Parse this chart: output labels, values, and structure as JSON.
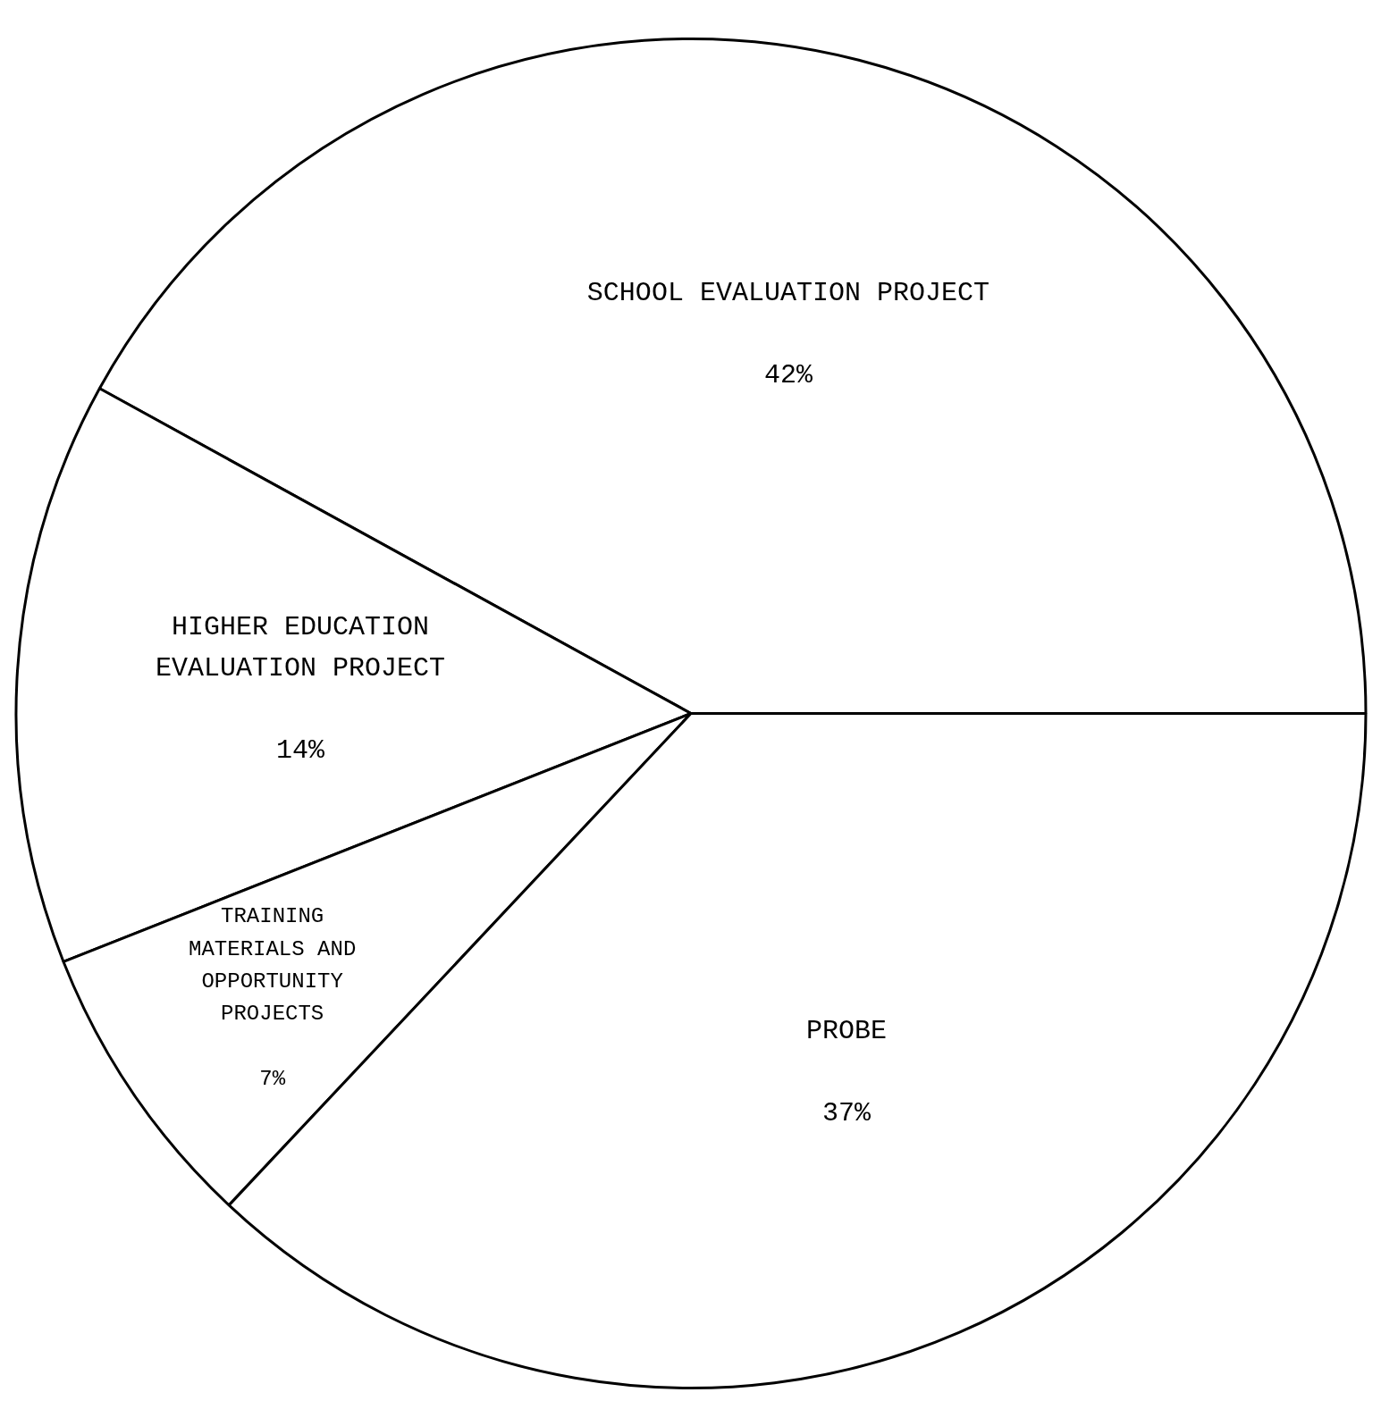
{
  "chart_data": {
    "type": "pie",
    "categories": [
      "SCHOOL EVALUATION PROJECT",
      "HIGHER EDUCATION EVALUATION PROJECT",
      "TRAINING MATERIALS AND OPPORTUNITY PROJECTS",
      "PROBE"
    ],
    "values": [
      42,
      14,
      7,
      37
    ],
    "colors": [
      "#ffffff",
      "#ffffff",
      "#ffffff",
      "#ffffff"
    ],
    "value_labels": [
      "42%",
      "14%",
      "7%",
      "37%"
    ]
  }
}
